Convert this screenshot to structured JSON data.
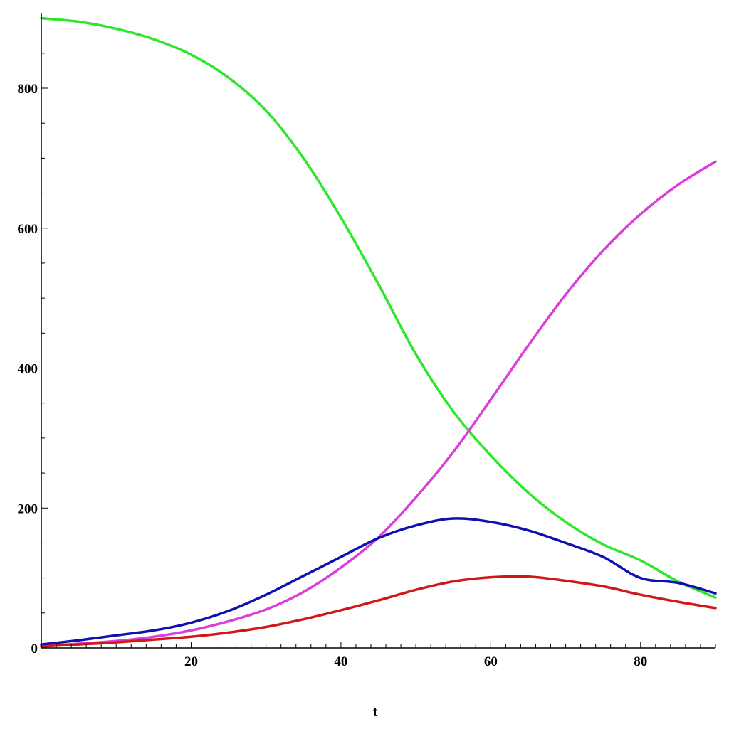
{
  "chart_data": {
    "type": "line",
    "title": "",
    "xlabel": "t",
    "ylabel": "",
    "xlim": [
      0,
      90
    ],
    "ylim": [
      0,
      900
    ],
    "grid": false,
    "x_ticks": [
      20,
      40,
      60,
      80
    ],
    "y_ticks": [
      0,
      200,
      400,
      600,
      800
    ],
    "series": [
      {
        "color": "#2ee62e",
        "points": [
          [
            0,
            900
          ],
          [
            5,
            895
          ],
          [
            10,
            885
          ],
          [
            15,
            870
          ],
          [
            20,
            848
          ],
          [
            25,
            815
          ],
          [
            30,
            768
          ],
          [
            35,
            700
          ],
          [
            40,
            615
          ],
          [
            45,
            520
          ],
          [
            50,
            420
          ],
          [
            55,
            338
          ],
          [
            60,
            275
          ],
          [
            65,
            222
          ],
          [
            70,
            180
          ],
          [
            75,
            148
          ],
          [
            80,
            125
          ],
          [
            85,
            95
          ],
          [
            90,
            72
          ]
        ]
      },
      {
        "color": "#d93fd9",
        "points": [
          [
            0,
            3
          ],
          [
            5,
            6
          ],
          [
            10,
            10
          ],
          [
            15,
            16
          ],
          [
            20,
            25
          ],
          [
            25,
            38
          ],
          [
            30,
            55
          ],
          [
            35,
            80
          ],
          [
            40,
            115
          ],
          [
            45,
            158
          ],
          [
            50,
            215
          ],
          [
            55,
            280
          ],
          [
            60,
            355
          ],
          [
            65,
            432
          ],
          [
            70,
            505
          ],
          [
            75,
            568
          ],
          [
            80,
            620
          ],
          [
            85,
            662
          ],
          [
            90,
            695
          ]
        ]
      },
      {
        "color": "#1010b0",
        "points": [
          [
            0,
            5
          ],
          [
            5,
            11
          ],
          [
            10,
            18
          ],
          [
            15,
            25
          ],
          [
            20,
            36
          ],
          [
            25,
            53
          ],
          [
            30,
            76
          ],
          [
            35,
            103
          ],
          [
            40,
            130
          ],
          [
            45,
            157
          ],
          [
            50,
            175
          ],
          [
            55,
            185
          ],
          [
            60,
            180
          ],
          [
            65,
            168
          ],
          [
            70,
            150
          ],
          [
            75,
            130
          ],
          [
            80,
            100
          ],
          [
            85,
            93
          ],
          [
            90,
            78
          ]
        ]
      },
      {
        "color": "#d01818",
        "points": [
          [
            0,
            2
          ],
          [
            5,
            5
          ],
          [
            10,
            8
          ],
          [
            15,
            12
          ],
          [
            20,
            16
          ],
          [
            25,
            22
          ],
          [
            30,
            30
          ],
          [
            35,
            41
          ],
          [
            40,
            54
          ],
          [
            45,
            68
          ],
          [
            50,
            83
          ],
          [
            55,
            95
          ],
          [
            60,
            101
          ],
          [
            65,
            102
          ],
          [
            70,
            96
          ],
          [
            75,
            88
          ],
          [
            80,
            76
          ],
          [
            85,
            66
          ],
          [
            90,
            57
          ]
        ]
      }
    ]
  }
}
